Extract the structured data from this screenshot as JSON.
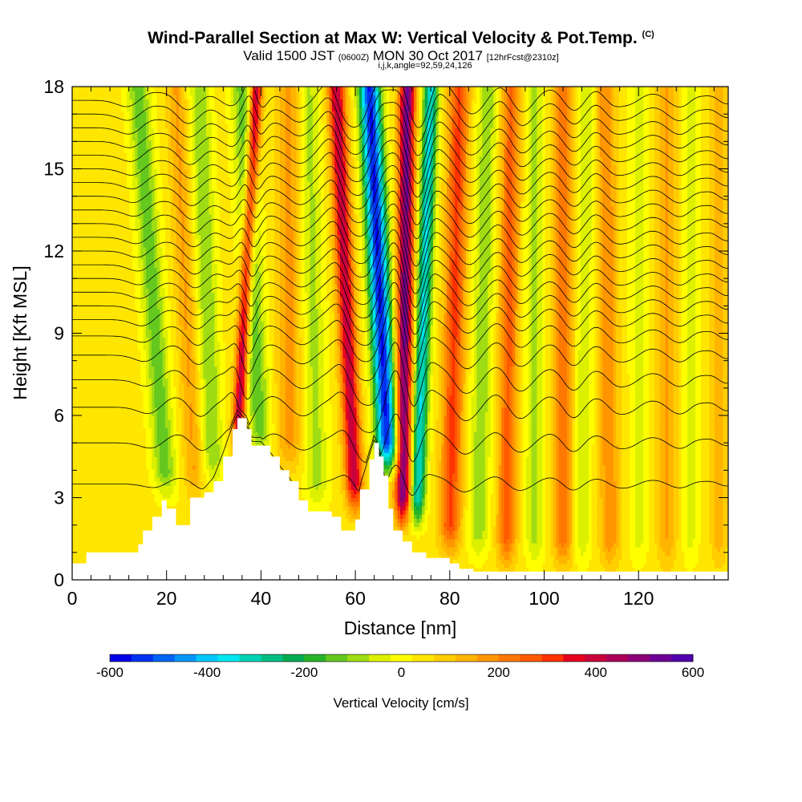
{
  "header": {
    "title": "Wind-Parallel Section at Max W: Vertical Velocity & Pot.Temp.",
    "title_suffix": "(C)",
    "valid_prefix": "Valid 1500 JST ",
    "valid_utc": "(0600Z)",
    "valid_date": " MON 30 Oct 2017 ",
    "forecast": "[12hrFcst@2310z]",
    "section_params": "i,j,k,angle=92,59,24,126"
  },
  "chart_data": {
    "type": "heatmap",
    "xlabel": "Distance [nm]",
    "ylabel": "Height [Kft MSL]",
    "xlim": [
      0,
      139
    ],
    "ylim": [
      0,
      18
    ],
    "x_ticks": [
      0,
      20,
      40,
      60,
      80,
      100,
      120
    ],
    "y_ticks": [
      0,
      3,
      6,
      9,
      12,
      15,
      18
    ],
    "colorbar": {
      "label": "Vertical Velocity [cm/s]",
      "tick_values": [
        -600,
        -400,
        -200,
        0,
        200,
        400,
        600
      ],
      "min": -600,
      "max": 600,
      "colors": [
        "#0000e6",
        "#0032f0",
        "#0064f5",
        "#0096f8",
        "#00c8fa",
        "#00e6f0",
        "#00d2b4",
        "#00be82",
        "#00aa50",
        "#28b428",
        "#64c81e",
        "#a0dc14",
        "#dcf000",
        "#ffff00",
        "#ffe600",
        "#ffcd00",
        "#ffb400",
        "#ff9600",
        "#ff7800",
        "#ff5a00",
        "#ff3200",
        "#e6001e",
        "#c8003c",
        "#aa005a",
        "#8c0078",
        "#6e0096",
        "#5000aa"
      ]
    },
    "terrain_kft": {
      "x": [
        0,
        3,
        10,
        14,
        15,
        17,
        19,
        20,
        22,
        25,
        28,
        30,
        32,
        34,
        35,
        37,
        38,
        40,
        42,
        44,
        46,
        48,
        50,
        55,
        57,
        60,
        61,
        63,
        64,
        65,
        66,
        67,
        68,
        70,
        72,
        75,
        80,
        82,
        85,
        139
      ],
      "y": [
        0.6,
        1.0,
        1.0,
        1.3,
        1.8,
        2.3,
        2.9,
        2.6,
        2.0,
        3.0,
        3.2,
        3.6,
        4.5,
        5.5,
        5.9,
        5.5,
        4.9,
        4.9,
        4.5,
        4.0,
        3.6,
        2.9,
        2.5,
        2.3,
        1.8,
        2.2,
        3.3,
        4.4,
        5.0,
        4.5,
        3.8,
        2.6,
        1.8,
        1.4,
        1.0,
        0.8,
        0.6,
        0.4,
        0.3,
        0.3
      ]
    },
    "velocity_bands": [
      {
        "x_bottom": 20,
        "x_top": 14,
        "y_bottom": 3.0,
        "peak_cm_s": -180,
        "half_width_nm": 2.4
      },
      {
        "x_bottom": 26,
        "x_top": 22,
        "y_bottom": 3.0,
        "peak_cm_s": 120,
        "half_width_nm": 2.0
      },
      {
        "x_bottom": 30,
        "x_top": 27,
        "y_bottom": 3.5,
        "peak_cm_s": -150,
        "half_width_nm": 2.2
      },
      {
        "x_bottom": 35,
        "x_top": 39,
        "y_bottom": 4.8,
        "peak_cm_s": 400,
        "half_width_nm": 1.3
      },
      {
        "x_bottom": 40,
        "x_top": 36,
        "y_bottom": 4.5,
        "peak_cm_s": -180,
        "half_width_nm": 2.4
      },
      {
        "x_bottom": 46,
        "x_top": 46,
        "y_bottom": 4.0,
        "peak_cm_s": 130,
        "half_width_nm": 2.6
      },
      {
        "x_bottom": 52,
        "x_top": 50,
        "y_bottom": 2.5,
        "peak_cm_s": -120,
        "half_width_nm": 2.4
      },
      {
        "x_bottom": 60,
        "x_top": 56,
        "y_bottom": 2.5,
        "peak_cm_s": 380,
        "half_width_nm": 1.8
      },
      {
        "x_bottom": 67,
        "x_top": 63,
        "y_bottom": 4.0,
        "peak_cm_s": -600,
        "half_width_nm": 2.2
      },
      {
        "x_bottom": 70,
        "x_top": 71,
        "y_bottom": 2.0,
        "peak_cm_s": 480,
        "half_width_nm": 1.7
      },
      {
        "x_bottom": 73,
        "x_top": 76,
        "y_bottom": 2.0,
        "peak_cm_s": -380,
        "half_width_nm": 1.6
      },
      {
        "x_bottom": 80,
        "x_top": 82,
        "y_bottom": 1.0,
        "peak_cm_s": 260,
        "half_width_nm": 2.2
      },
      {
        "x_bottom": 86,
        "x_top": 88,
        "y_bottom": 0.8,
        "peak_cm_s": -140,
        "half_width_nm": 2.2
      },
      {
        "x_bottom": 92,
        "x_top": 93,
        "y_bottom": 0.5,
        "peak_cm_s": 220,
        "half_width_nm": 2.0
      },
      {
        "x_bottom": 98,
        "x_top": 98,
        "y_bottom": 0.5,
        "peak_cm_s": -120,
        "half_width_nm": 2.0
      },
      {
        "x_bottom": 104,
        "x_top": 104,
        "y_bottom": 0.5,
        "peak_cm_s": 200,
        "half_width_nm": 2.0
      },
      {
        "x_bottom": 108,
        "x_top": 109,
        "y_bottom": 0.5,
        "peak_cm_s": -100,
        "half_width_nm": 1.8
      },
      {
        "x_bottom": 114,
        "x_top": 113,
        "y_bottom": 0.5,
        "peak_cm_s": 160,
        "half_width_nm": 2.0
      },
      {
        "x_bottom": 120,
        "x_top": 120,
        "y_bottom": 0.5,
        "peak_cm_s": -80,
        "half_width_nm": 1.8
      },
      {
        "x_bottom": 126,
        "x_top": 126,
        "y_bottom": 0.5,
        "peak_cm_s": 120,
        "half_width_nm": 2.0
      },
      {
        "x_bottom": 131,
        "x_top": 131,
        "y_bottom": 0.5,
        "peak_cm_s": -80,
        "half_width_nm": 1.6
      },
      {
        "x_bottom": 137,
        "x_top": 137,
        "y_bottom": 0.5,
        "peak_cm_s": 100,
        "half_width_nm": 1.6
      }
    ],
    "isentrope_heights_kft": [
      3.5,
      5.0,
      6.3,
      7.3,
      8.2,
      8.9,
      9.5,
      10.0,
      10.5,
      11.0,
      11.5,
      12.0,
      12.5,
      13.0,
      13.5,
      14.0,
      14.5,
      15.0,
      15.5,
      16.0,
      16.5,
      17.0,
      17.5
    ],
    "isentrope_wave_amplitude_kft": 1.8
  }
}
